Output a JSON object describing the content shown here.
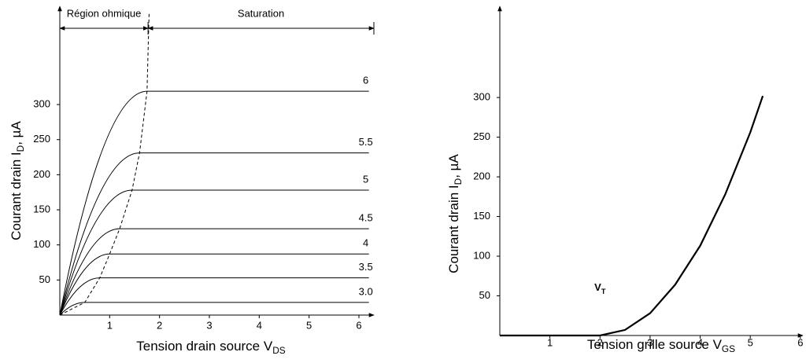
{
  "chart_data": [
    {
      "type": "characteristic",
      "xlabel": {
        "text": "Tension drain source V",
        "sub": "DS"
      },
      "ylabel": {
        "text": "Courant drain I",
        "sub": "D",
        "suffix": ", µA"
      },
      "xlim": [
        0,
        6.3
      ],
      "ylim": [
        0,
        440
      ],
      "xticks": [
        1,
        2,
        3,
        4,
        5,
        6
      ],
      "yticks": [
        50,
        100,
        150,
        200,
        250,
        300
      ],
      "regions": [
        {
          "label": "Région ohmique",
          "from": 0,
          "to": 1.77
        },
        {
          "label": "Saturation",
          "from": 1.77,
          "to": 6.3
        }
      ],
      "series": [
        {
          "name": "6",
          "color": "#000000",
          "x": [
            0,
            1.75,
            6.2
          ],
          "values": [
            0,
            319,
            319
          ]
        },
        {
          "name": "5.5",
          "color": "#000000",
          "x": [
            0,
            1.6,
            6.2
          ],
          "values": [
            0,
            231,
            231
          ]
        },
        {
          "name": "5",
          "color": "#000000",
          "x": [
            0,
            1.45,
            6.2
          ],
          "values": [
            0,
            178,
            178
          ]
        },
        {
          "name": "4.5",
          "color": "#000000",
          "x": [
            0,
            1.2,
            6.2
          ],
          "values": [
            0,
            123,
            123
          ]
        },
        {
          "name": "4",
          "color": "#000000",
          "x": [
            0,
            1.0,
            6.2
          ],
          "values": [
            0,
            87,
            87
          ]
        },
        {
          "name": "3.5",
          "color": "#000000",
          "x": [
            0,
            0.8,
            6.2
          ],
          "values": [
            0,
            53,
            53
          ]
        },
        {
          "name": "3.0",
          "color": "#000000",
          "x": [
            0,
            0.5,
            6.2
          ],
          "values": [
            0,
            18,
            18
          ]
        }
      ],
      "boundary": {
        "color": "#000000",
        "x": [
          0,
          0.5,
          0.8,
          1.0,
          1.2,
          1.45,
          1.6,
          1.75,
          1.79
        ],
        "values": [
          0,
          18,
          53,
          87,
          123,
          178,
          231,
          319,
          430
        ]
      }
    },
    {
      "type": "line",
      "xlabel": {
        "text": "Tension grille source V",
        "sub": "GS"
      },
      "ylabel": {
        "text": "Courant drain I",
        "sub": "D",
        "suffix": ", µA"
      },
      "xlim": [
        0,
        6.05
      ],
      "ylim": [
        0,
        415
      ],
      "xticks": [
        1,
        2,
        3,
        4,
        5,
        6
      ],
      "yticks": [
        50,
        100,
        150,
        200,
        250,
        300
      ],
      "series": [
        {
          "color": "#000000",
          "x": [
            0,
            2,
            2.5,
            3,
            3.5,
            4,
            4.5,
            5,
            5.25
          ],
          "values": [
            0,
            0,
            7,
            28,
            64,
            113,
            178,
            256,
            302
          ]
        }
      ],
      "annotation": {
        "text": "V",
        "sub": "T",
        "x": 2
      }
    }
  ]
}
